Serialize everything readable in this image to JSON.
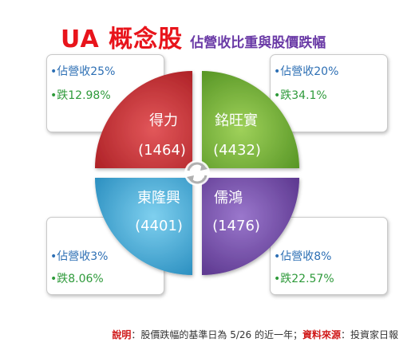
{
  "title": {
    "main": "UA 概念股",
    "subtitle": "佔營收比重與股價跌幅"
  },
  "quadrants": [
    {
      "name": "得力",
      "code": "(1464)",
      "revenue_share": "•佔營收25%",
      "price_drop": "•跌12.98%",
      "color": "#c8282c"
    },
    {
      "name": "銘旺實",
      "code": "(4432)",
      "revenue_share": "•佔營收20%",
      "price_drop": "•跌34.1%",
      "color": "#6dad2d"
    },
    {
      "name": "東隆興",
      "code": "(4401)",
      "revenue_share": "•佔營收3%",
      "price_drop": "•跌8.06%",
      "color": "#3aa6d4"
    },
    {
      "name": "儒鴻",
      "code": "(1476)",
      "revenue_share": "•佔營收8%",
      "price_drop": "•跌22.57%",
      "color": "#6f45a6"
    }
  ],
  "footnote": {
    "label1": "說明",
    "text1": "：股價跌幅的基準日為 5/26 的近一年；",
    "label2": "資料來源",
    "text2": "：投資家日報"
  },
  "icons": {
    "center": "refresh-cycle-icon"
  }
}
